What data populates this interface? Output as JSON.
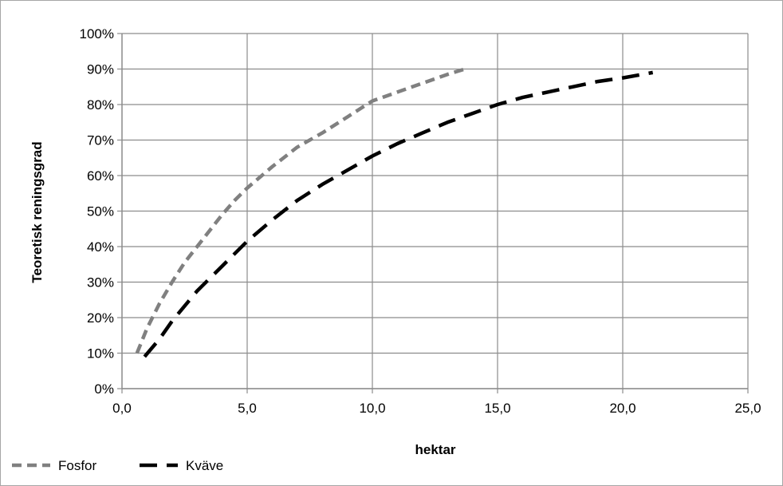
{
  "chart_data": {
    "type": "line",
    "title": "",
    "xlabel": "hektar",
    "ylabel": "Teoretisk reningsgrad",
    "xlim": [
      0,
      25
    ],
    "ylim": [
      0,
      1
    ],
    "x_ticks": [
      0,
      5,
      10,
      15,
      20,
      25
    ],
    "x_tick_labels": [
      "0,0",
      "5,0",
      "10,0",
      "15,0",
      "20,0",
      "25,0"
    ],
    "y_ticks": [
      0,
      0.1,
      0.2,
      0.3,
      0.4,
      0.5,
      0.6,
      0.7,
      0.8,
      0.9,
      1.0
    ],
    "y_tick_labels": [
      "0%",
      "10%",
      "20%",
      "30%",
      "40%",
      "50%",
      "60%",
      "70%",
      "80%",
      "90%",
      "100%"
    ],
    "grid": true,
    "legend_position": "bottom-left",
    "series": [
      {
        "name": "Fosfor",
        "color": "#808080",
        "dash": "short",
        "points": [
          [
            0.6,
            0.1
          ],
          [
            1.0,
            0.17
          ],
          [
            1.5,
            0.24
          ],
          [
            2.0,
            0.3
          ],
          [
            2.5,
            0.355
          ],
          [
            3.0,
            0.4
          ],
          [
            3.5,
            0.445
          ],
          [
            4.0,
            0.49
          ],
          [
            4.5,
            0.53
          ],
          [
            5.0,
            0.565
          ],
          [
            6.0,
            0.625
          ],
          [
            7.0,
            0.68
          ],
          [
            8.0,
            0.72
          ],
          [
            9.0,
            0.765
          ],
          [
            10.0,
            0.81
          ],
          [
            11.0,
            0.835
          ],
          [
            12.0,
            0.86
          ],
          [
            13.0,
            0.885
          ],
          [
            13.7,
            0.9
          ]
        ]
      },
      {
        "name": "Kväve",
        "color": "#000000",
        "dash": "long",
        "points": [
          [
            0.9,
            0.09
          ],
          [
            1.5,
            0.14
          ],
          [
            2.0,
            0.19
          ],
          [
            3.0,
            0.275
          ],
          [
            4.0,
            0.345
          ],
          [
            5.0,
            0.415
          ],
          [
            6.0,
            0.475
          ],
          [
            7.0,
            0.53
          ],
          [
            8.0,
            0.575
          ],
          [
            9.0,
            0.615
          ],
          [
            10.0,
            0.655
          ],
          [
            11.0,
            0.69
          ],
          [
            12.0,
            0.72
          ],
          [
            13.0,
            0.75
          ],
          [
            14.0,
            0.775
          ],
          [
            15.0,
            0.8
          ],
          [
            16.0,
            0.82
          ],
          [
            17.0,
            0.835
          ],
          [
            18.0,
            0.85
          ],
          [
            19.0,
            0.865
          ],
          [
            20.0,
            0.875
          ],
          [
            21.2,
            0.89
          ]
        ]
      }
    ]
  }
}
